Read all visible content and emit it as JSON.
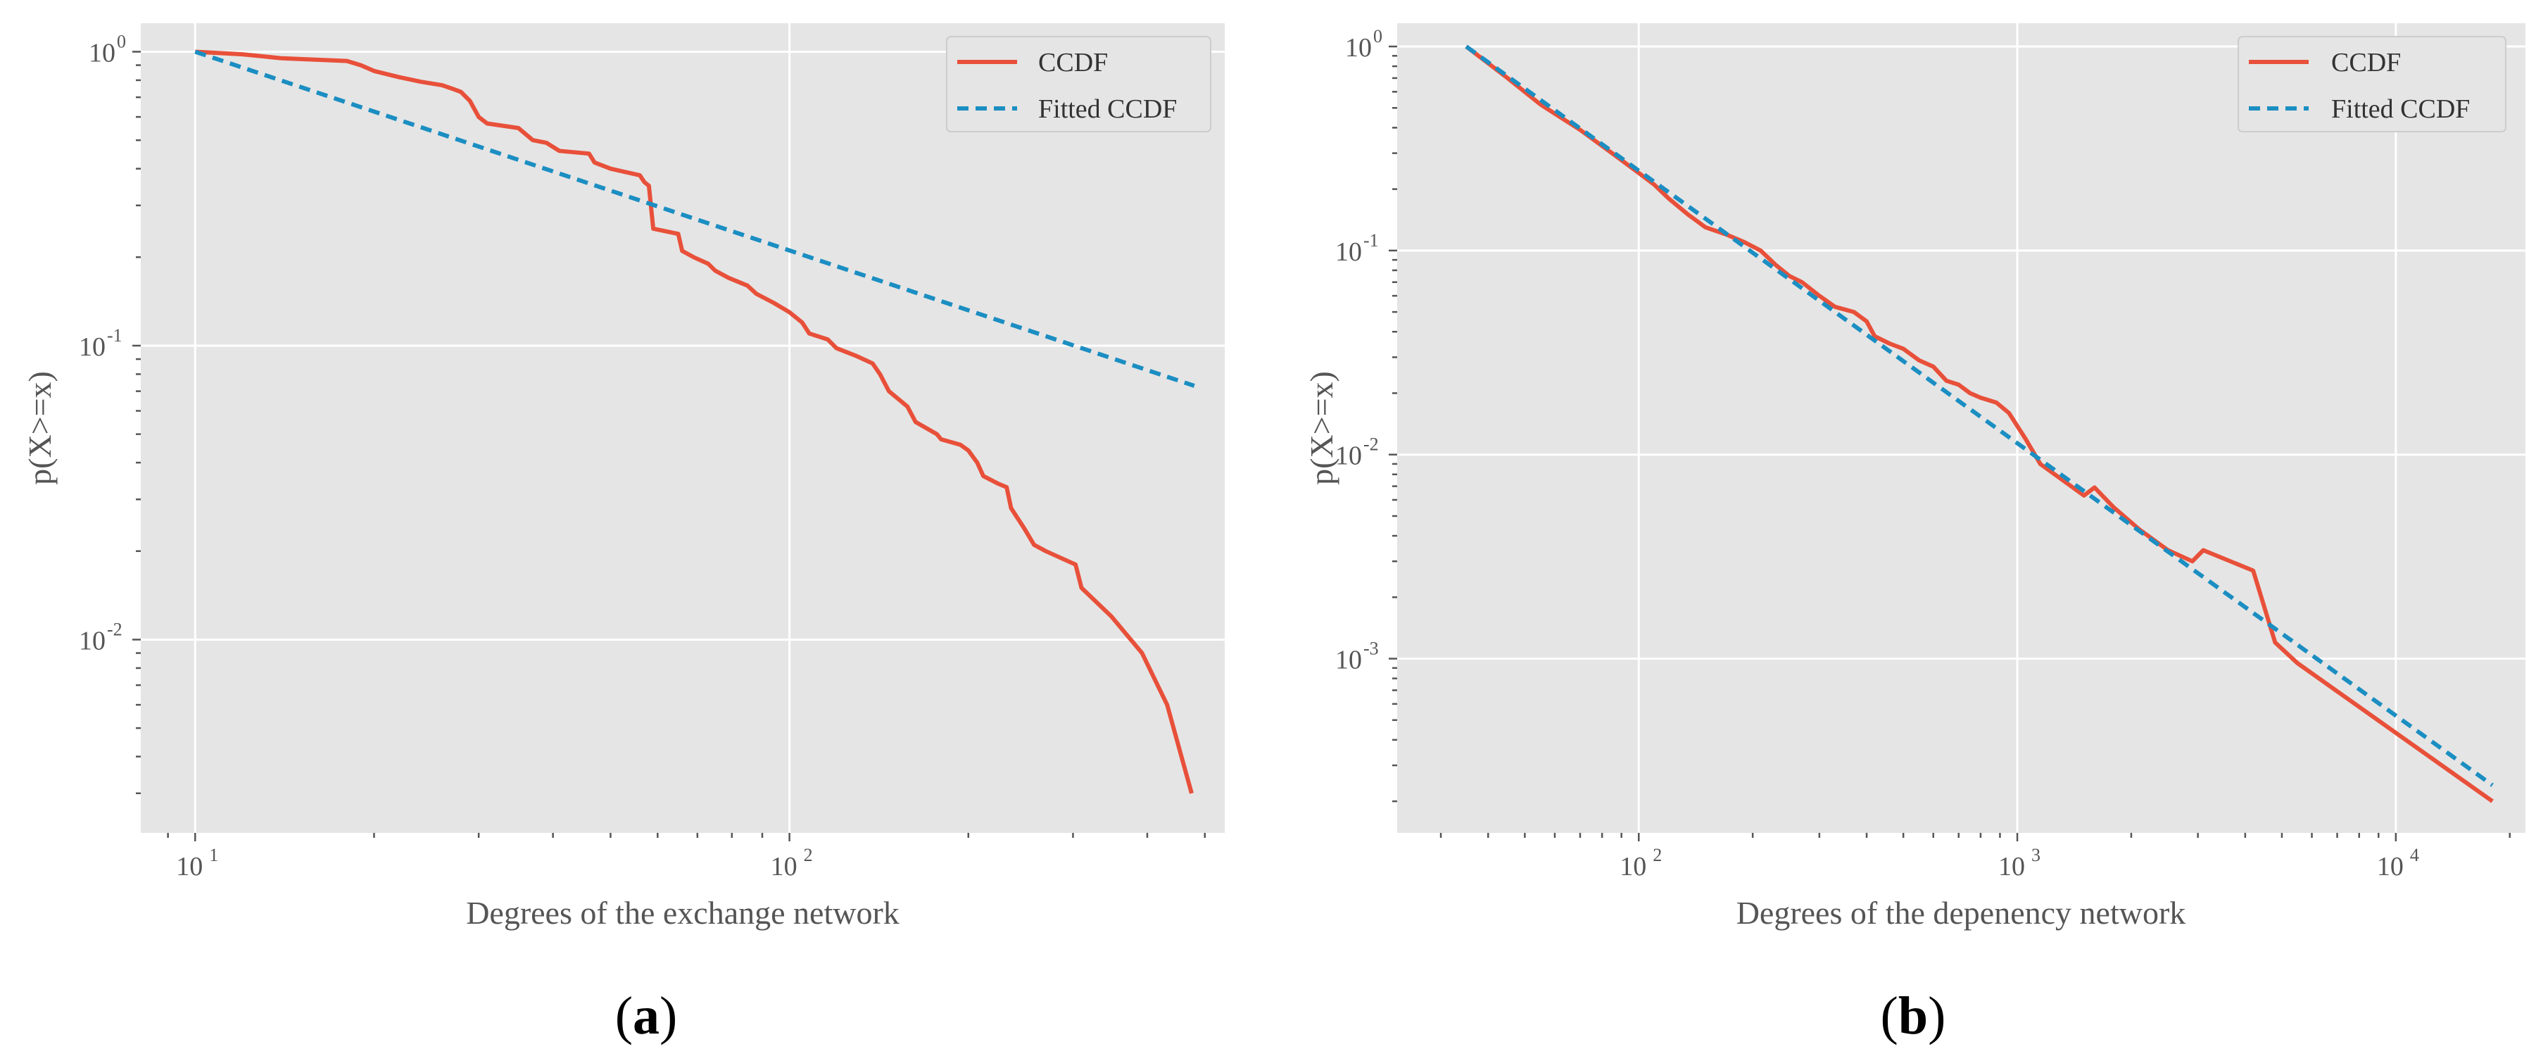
{
  "colors": {
    "ccdf": "#e8503a",
    "fitted": "#1b8ec2",
    "background": "#e5e5e5",
    "grid": "#ffffff"
  },
  "panels": [
    {
      "caption_open": "(",
      "caption_letter": "a",
      "caption_close": ")"
    },
    {
      "caption_open": "(",
      "caption_letter": "b",
      "caption_close": ")"
    }
  ],
  "chart_data": [
    {
      "type": "line",
      "xscale": "log",
      "yscale": "log",
      "xlabel": "Degrees of the exchange network",
      "ylabel": "p(X>=x)",
      "xlim": [
        8.1,
        540
      ],
      "ylim": [
        0.0022,
        1.25
      ],
      "x_major_ticks": [
        {
          "value": 10,
          "base": "10",
          "exp": "1"
        },
        {
          "value": 100,
          "base": "10",
          "exp": "2"
        }
      ],
      "y_major_ticks": [
        {
          "value": 1,
          "base": "10",
          "exp": "0"
        },
        {
          "value": 0.1,
          "base": "10",
          "exp": "-1"
        },
        {
          "value": 0.01,
          "base": "10",
          "exp": "-2"
        }
      ],
      "legend": {
        "location": "upper right",
        "entries": [
          "CCDF",
          "Fitted CCDF"
        ]
      },
      "series": [
        {
          "name": "CCDF",
          "style": "solid",
          "points": [
            [
              10,
              1.0
            ],
            [
              12,
              0.98
            ],
            [
              14,
              0.95
            ],
            [
              18,
              0.93
            ],
            [
              19,
              0.9
            ],
            [
              20,
              0.86
            ],
            [
              22,
              0.82
            ],
            [
              24,
              0.79
            ],
            [
              26,
              0.77
            ],
            [
              27,
              0.75
            ],
            [
              28,
              0.73
            ],
            [
              29,
              0.68
            ],
            [
              30,
              0.6
            ],
            [
              31,
              0.57
            ],
            [
              35,
              0.55
            ],
            [
              37,
              0.5
            ],
            [
              39,
              0.49
            ],
            [
              41,
              0.46
            ],
            [
              46,
              0.45
            ],
            [
              47,
              0.42
            ],
            [
              50,
              0.4
            ],
            [
              56,
              0.38
            ],
            [
              57,
              0.36
            ],
            [
              58,
              0.35
            ],
            [
              59,
              0.25
            ],
            [
              65,
              0.24
            ],
            [
              66,
              0.21
            ],
            [
              69,
              0.2
            ],
            [
              73,
              0.19
            ],
            [
              75,
              0.18
            ],
            [
              79,
              0.17
            ],
            [
              85,
              0.16
            ],
            [
              88,
              0.15
            ],
            [
              94,
              0.14
            ],
            [
              100,
              0.13
            ],
            [
              105,
              0.12
            ],
            [
              108,
              0.11
            ],
            [
              116,
              0.105
            ],
            [
              120,
              0.098
            ],
            [
              130,
              0.092
            ],
            [
              138,
              0.087
            ],
            [
              142,
              0.08
            ],
            [
              147,
              0.07
            ],
            [
              158,
              0.062
            ],
            [
              163,
              0.055
            ],
            [
              177,
              0.05
            ],
            [
              180,
              0.048
            ],
            [
              194,
              0.046
            ],
            [
              200,
              0.044
            ],
            [
              207,
              0.04
            ],
            [
              212,
              0.036
            ],
            [
              224,
              0.034
            ],
            [
              232,
              0.033
            ],
            [
              236,
              0.028
            ],
            [
              248,
              0.024
            ],
            [
              258,
              0.021
            ],
            [
              270,
              0.02
            ],
            [
              303,
              0.018
            ],
            [
              310,
              0.015
            ],
            [
              348,
              0.012
            ],
            [
              392,
              0.009
            ],
            [
              432,
              0.006
            ],
            [
              475,
              0.003
            ]
          ]
        },
        {
          "name": "Fitted CCDF",
          "style": "dashed",
          "points": [
            [
              10,
              1.0
            ],
            [
              480,
              0.073
            ]
          ]
        }
      ]
    },
    {
      "type": "line",
      "xscale": "log",
      "yscale": "log",
      "xlabel": "Degrees of the depenency network",
      "ylabel": "p(X>=x)",
      "xlim": [
        23,
        22000
      ],
      "ylim": [
        0.00014,
        1.3
      ],
      "x_major_ticks": [
        {
          "value": 100,
          "base": "10",
          "exp": "2"
        },
        {
          "value": 1000,
          "base": "10",
          "exp": "3"
        },
        {
          "value": 10000,
          "base": "10",
          "exp": "4"
        }
      ],
      "y_major_ticks": [
        {
          "value": 1,
          "base": "10",
          "exp": "0"
        },
        {
          "value": 0.1,
          "base": "10",
          "exp": "-1"
        },
        {
          "value": 0.01,
          "base": "10",
          "exp": "-2"
        },
        {
          "value": 0.001,
          "base": "10",
          "exp": "-3"
        }
      ],
      "legend": {
        "location": "upper right",
        "entries": [
          "CCDF",
          "Fitted CCDF"
        ]
      },
      "series": [
        {
          "name": "CCDF",
          "style": "solid",
          "points": [
            [
              35,
              1.0
            ],
            [
              45,
              0.7
            ],
            [
              55,
              0.52
            ],
            [
              70,
              0.39
            ],
            [
              85,
              0.3
            ],
            [
              100,
              0.24
            ],
            [
              110,
              0.21
            ],
            [
              120,
              0.18
            ],
            [
              135,
              0.15
            ],
            [
              150,
              0.13
            ],
            [
              170,
              0.12
            ],
            [
              190,
              0.11
            ],
            [
              210,
              0.1
            ],
            [
              230,
              0.085
            ],
            [
              250,
              0.075
            ],
            [
              270,
              0.07
            ],
            [
              300,
              0.06
            ],
            [
              330,
              0.053
            ],
            [
              370,
              0.05
            ],
            [
              400,
              0.045
            ],
            [
              420,
              0.038
            ],
            [
              460,
              0.035
            ],
            [
              500,
              0.033
            ],
            [
              550,
              0.029
            ],
            [
              600,
              0.027
            ],
            [
              650,
              0.023
            ],
            [
              700,
              0.022
            ],
            [
              750,
              0.02
            ],
            [
              800,
              0.019
            ],
            [
              880,
              0.018
            ],
            [
              950,
              0.016
            ],
            [
              1050,
              0.012
            ],
            [
              1150,
              0.009
            ],
            [
              1500,
              0.0063
            ],
            [
              1600,
              0.0069
            ],
            [
              1800,
              0.0055
            ],
            [
              2100,
              0.0043
            ],
            [
              2500,
              0.0034
            ],
            [
              2900,
              0.003
            ],
            [
              3100,
              0.0034
            ],
            [
              4200,
              0.0027
            ],
            [
              4800,
              0.0012
            ],
            [
              5500,
              0.00095
            ],
            [
              18000,
              0.0002
            ]
          ]
        },
        {
          "name": "Fitted CCDF",
          "style": "dashed",
          "points": [
            [
              35,
              1.0
            ],
            [
              18000,
              0.00024
            ]
          ]
        }
      ]
    }
  ]
}
